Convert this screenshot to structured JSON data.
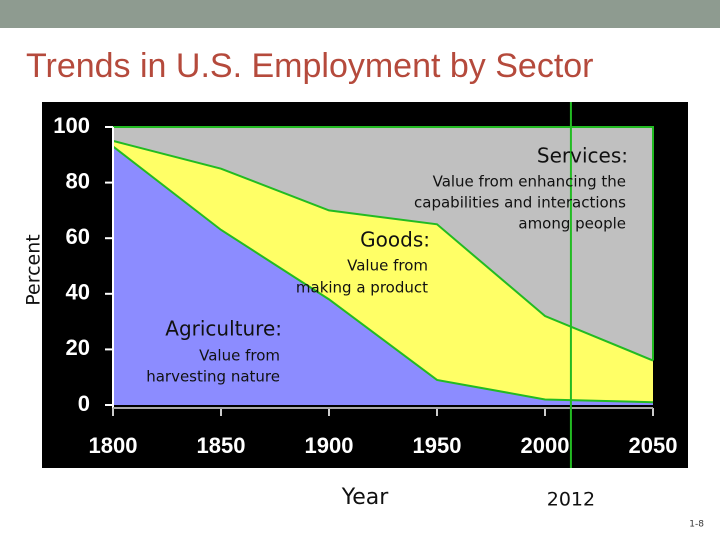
{
  "title": "Trends in U.S. Employment by Sector",
  "slide_number": "1-8",
  "chart_data": {
    "type": "stacked_area",
    "x_label": "Year",
    "y_label": "Percent",
    "x": [
      1800,
      1850,
      1900,
      1950,
      2000,
      2050
    ],
    "series": [
      {
        "name": "Agriculture:",
        "description": [
          "Value from",
          "harvesting nature"
        ],
        "color": "#8c8cff",
        "values": [
          93,
          63,
          38,
          9,
          2,
          1
        ]
      },
      {
        "name": "Goods:",
        "description": [
          "Value from",
          "making a product"
        ],
        "color": "#ffff66",
        "values": [
          2,
          22,
          32,
          56,
          30,
          15
        ]
      },
      {
        "name": "Services:",
        "description": [
          "Value from enhancing the",
          "capabilities and interactions",
          "among people"
        ],
        "color": "#c0c0c0",
        "values": [
          5,
          15,
          30,
          35,
          68,
          84
        ]
      }
    ],
    "xlim": [
      1800,
      2050
    ],
    "xticks": [
      1800,
      1850,
      1900,
      1950,
      2000,
      2050
    ],
    "ylim": [
      0,
      100
    ],
    "yticks": [
      0,
      20,
      40,
      60,
      80,
      100
    ],
    "vline": {
      "value": 2012,
      "label": "2012",
      "color": "#22bb22"
    }
  }
}
